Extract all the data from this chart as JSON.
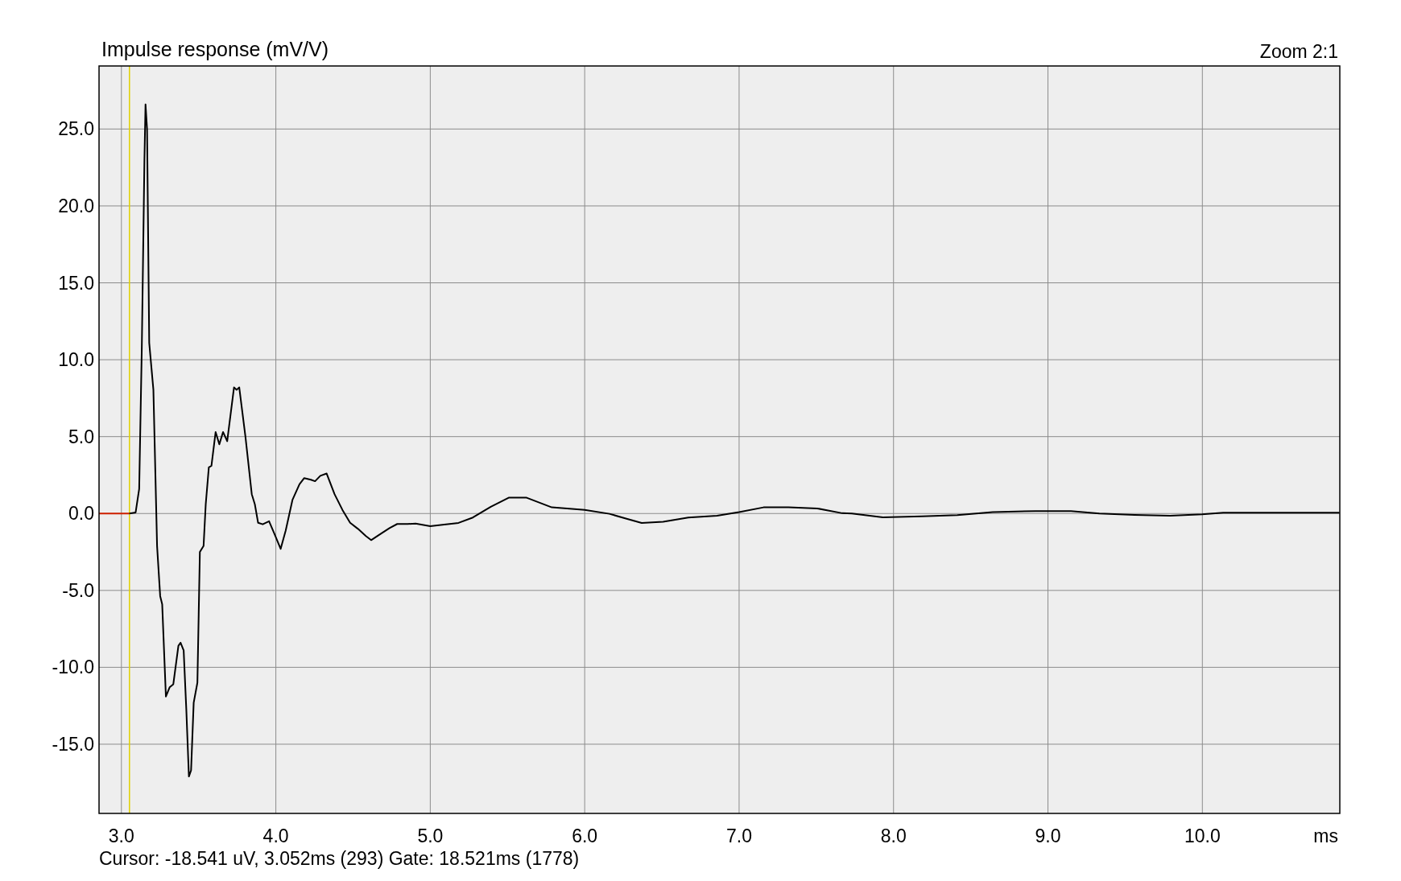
{
  "chart_data": {
    "type": "line",
    "title": "Impulse response (mV/V)",
    "xlabel": "ms",
    "annotations": [
      "Zoom 2:1",
      "Cursor: -18.541 uV, 3.052ms (293)  Gate: 18.521ms (1778)"
    ],
    "xlim": [
      2.855,
      10.89
    ],
    "ylim": [
      -19.5,
      29.1
    ],
    "xticks": [
      {
        "value": 3,
        "label": "3.0"
      },
      {
        "value": 4,
        "label": "4.0"
      },
      {
        "value": 5,
        "label": "5.0"
      },
      {
        "value": 6,
        "label": "6.0"
      },
      {
        "value": 7,
        "label": "7.0"
      },
      {
        "value": 8,
        "label": "8.0"
      },
      {
        "value": 9,
        "label": "9.0"
      },
      {
        "value": 10,
        "label": "10.0"
      }
    ],
    "yticks": [
      {
        "value": -15,
        "label": "-15.0"
      },
      {
        "value": -10,
        "label": "-10.0"
      },
      {
        "value": -5,
        "label": "-5.0"
      },
      {
        "value": 0,
        "label": "0.0"
      },
      {
        "value": 5,
        "label": "5.0"
      },
      {
        "value": 10,
        "label": "10.0"
      },
      {
        "value": 15,
        "label": "15.0"
      },
      {
        "value": 20,
        "label": "20.0"
      },
      {
        "value": 25,
        "label": "25.0"
      }
    ],
    "grid": true,
    "marker": "none",
    "line_style": "solid",
    "ref_lines": [
      {
        "axis": "x",
        "value": 3.052,
        "color": "#e0d000"
      }
    ],
    "series": [
      {
        "color": "#d02000",
        "x": [
          2.855,
          3.051
        ],
        "values": [
          0,
          0
        ]
      },
      {
        "color": "#000000",
        "x": [
          3.051,
          3.092,
          3.115,
          3.132,
          3.149,
          3.156,
          3.166,
          3.18,
          3.207,
          3.231,
          3.251,
          3.264,
          3.288,
          3.312,
          3.336,
          3.369,
          3.383,
          3.403,
          3.42,
          3.437,
          3.451,
          3.468,
          3.492,
          3.508,
          3.532,
          3.546,
          3.566,
          3.583,
          3.61,
          3.634,
          3.658,
          3.685,
          3.729,
          3.746,
          3.763,
          3.803,
          3.844,
          3.864,
          3.885,
          3.915,
          3.956,
          3.99,
          4.031,
          4.064,
          4.108,
          4.153,
          4.183,
          4.227,
          4.254,
          4.288,
          4.329,
          4.38,
          4.431,
          4.481,
          4.532,
          4.583,
          4.617,
          4.668,
          4.736,
          4.786,
          4.854,
          4.905,
          5.0,
          5.09,
          5.183,
          5.276,
          5.392,
          5.508,
          5.624,
          5.787,
          6.0,
          6.16,
          6.276,
          6.369,
          6.508,
          6.671,
          6.857,
          7.0,
          7.158,
          7.32,
          7.506,
          7.668,
          7.73,
          7.931,
          8.183,
          8.413,
          8.642,
          8.92,
          9.149,
          9.333,
          9.562,
          9.791,
          9.998,
          10.135,
          10.48,
          10.888
        ],
        "values": [
          0,
          0.07,
          1.6,
          10.8,
          23.0,
          26.6,
          25.0,
          11.1,
          8.05,
          -2.14,
          -5.37,
          -5.9,
          -11.9,
          -11.3,
          -11.1,
          -8.6,
          -8.4,
          -8.9,
          -12.7,
          -17.1,
          -16.7,
          -12.3,
          -11.0,
          -2.5,
          -2.1,
          0.6,
          3.0,
          3.1,
          5.3,
          4.5,
          5.3,
          4.7,
          8.2,
          8.05,
          8.2,
          5.0,
          1.26,
          0.6,
          -0.6,
          -0.7,
          -0.5,
          -1.3,
          -2.3,
          -1.1,
          0.9,
          1.9,
          2.3,
          2.2,
          2.1,
          2.45,
          2.6,
          1.26,
          0.24,
          -0.6,
          -1.0,
          -1.46,
          -1.73,
          -1.39,
          -0.95,
          -0.68,
          -0.68,
          -0.65,
          -0.82,
          -0.72,
          -0.61,
          -0.26,
          0.44,
          1.03,
          1.03,
          0.4,
          0.23,
          -0.02,
          -0.35,
          -0.61,
          -0.54,
          -0.26,
          -0.14,
          0.09,
          0.4,
          0.4,
          0.33,
          0.02,
          0.0,
          -0.25,
          -0.18,
          -0.11,
          0.09,
          0.16,
          0.16,
          0.0,
          -0.09,
          -0.14,
          -0.05,
          0.05,
          0.05,
          0.05
        ]
      }
    ]
  }
}
